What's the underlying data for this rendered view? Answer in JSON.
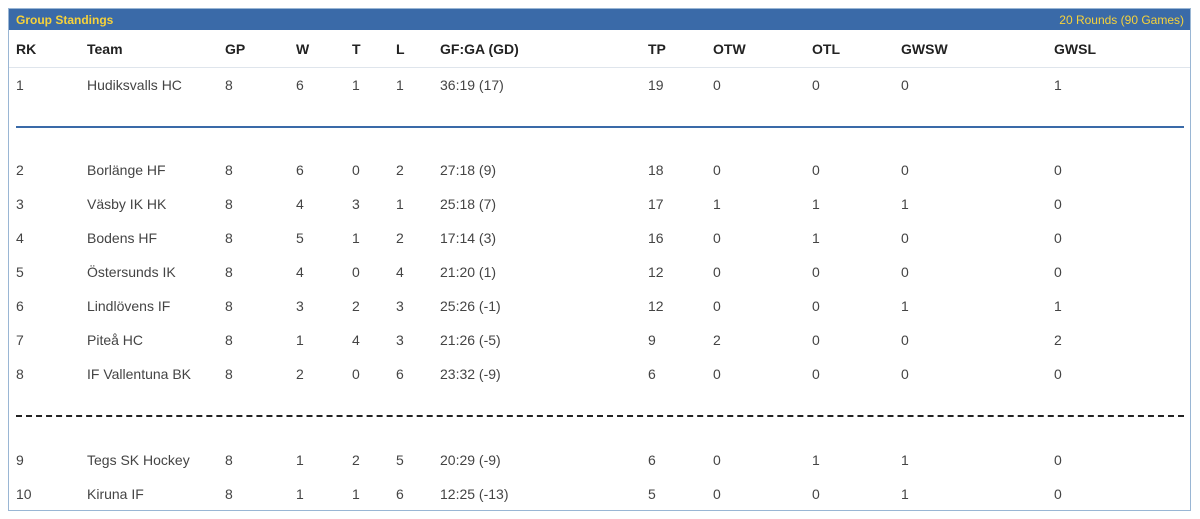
{
  "header": {
    "title": "Group Standings",
    "meta": "20 Rounds (90 Games)"
  },
  "columns": {
    "rk": "RK",
    "team": "Team",
    "gp": "GP",
    "w": "W",
    "t": "T",
    "l": "L",
    "gfga": "GF:GA (GD)",
    "tp": "TP",
    "otw": "OTW",
    "otl": "OTL",
    "gwsw": "GWSW",
    "gwsl": "GWSL"
  },
  "rows": [
    {
      "rk": "1",
      "team": "Hudiksvalls HC",
      "gp": "8",
      "w": "6",
      "t": "1",
      "l": "1",
      "gfga": "36:19 (17)",
      "tp": "19",
      "otw": "0",
      "otl": "0",
      "gwsw": "0",
      "gwsl": "1"
    },
    {
      "rk": "2",
      "team": "Borlänge HF",
      "gp": "8",
      "w": "6",
      "t": "0",
      "l": "2",
      "gfga": "27:18 (9)",
      "tp": "18",
      "otw": "0",
      "otl": "0",
      "gwsw": "0",
      "gwsl": "0"
    },
    {
      "rk": "3",
      "team": "Väsby IK HK",
      "gp": "8",
      "w": "4",
      "t": "3",
      "l": "1",
      "gfga": "25:18 (7)",
      "tp": "17",
      "otw": "1",
      "otl": "1",
      "gwsw": "1",
      "gwsl": "0"
    },
    {
      "rk": "4",
      "team": "Bodens HF",
      "gp": "8",
      "w": "5",
      "t": "1",
      "l": "2",
      "gfga": "17:14 (3)",
      "tp": "16",
      "otw": "0",
      "otl": "1",
      "gwsw": "0",
      "gwsl": "0"
    },
    {
      "rk": "5",
      "team": "Östersunds IK",
      "gp": "8",
      "w": "4",
      "t": "0",
      "l": "4",
      "gfga": "21:20 (1)",
      "tp": "12",
      "otw": "0",
      "otl": "0",
      "gwsw": "0",
      "gwsl": "0"
    },
    {
      "rk": "6",
      "team": "Lindlövens IF",
      "gp": "8",
      "w": "3",
      "t": "2",
      "l": "3",
      "gfga": "25:26 (-1)",
      "tp": "12",
      "otw": "0",
      "otl": "0",
      "gwsw": "1",
      "gwsl": "1"
    },
    {
      "rk": "7",
      "team": "Piteå HC",
      "gp": "8",
      "w": "1",
      "t": "4",
      "l": "3",
      "gfga": "21:26 (-5)",
      "tp": "9",
      "otw": "2",
      "otl": "0",
      "gwsw": "0",
      "gwsl": "2"
    },
    {
      "rk": "8",
      "team": "IF Vallentuna BK",
      "gp": "8",
      "w": "2",
      "t": "0",
      "l": "6",
      "gfga": "23:32 (-9)",
      "tp": "6",
      "otw": "0",
      "otl": "0",
      "gwsw": "0",
      "gwsl": "0"
    },
    {
      "rk": "9",
      "team": "Tegs SK Hockey",
      "gp": "8",
      "w": "1",
      "t": "2",
      "l": "5",
      "gfga": "20:29 (-9)",
      "tp": "6",
      "otw": "0",
      "otl": "1",
      "gwsw": "1",
      "gwsl": "0"
    },
    {
      "rk": "10",
      "team": "Kiruna IF",
      "gp": "8",
      "w": "1",
      "t": "1",
      "l": "6",
      "gfga": "12:25 (-13)",
      "tp": "5",
      "otw": "0",
      "otl": "0",
      "gwsw": "1",
      "gwsl": "0"
    }
  ],
  "colors": {
    "header_bg": "#3a6aa8",
    "header_text": "#f7d23a",
    "separator_solid": "#3a6aa8",
    "separator_dashed": "#222222"
  }
}
